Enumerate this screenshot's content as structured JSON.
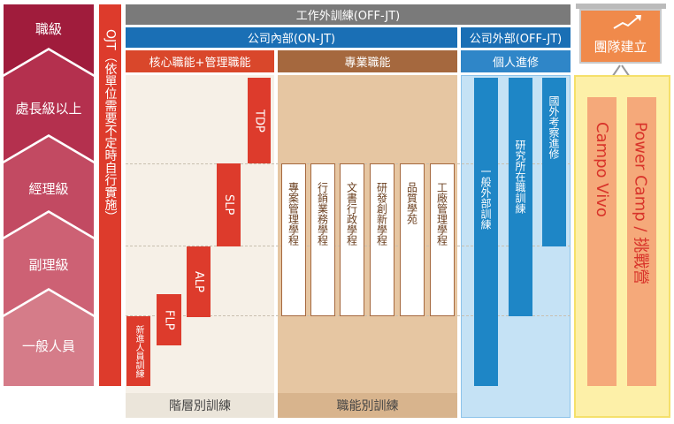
{
  "levels": {
    "title": "職級",
    "items": [
      "處長級以上",
      "經理級",
      "副理級",
      "一般人員"
    ]
  },
  "ojt": "OJT（依單位需要不定時自行實施）",
  "off_jt": "工作外訓練(OFF-JT)",
  "internal": {
    "title": "公司內部(ON-JT)",
    "core": {
      "title": "核心職能+管理職能",
      "programs": [
        "新進人員訓練",
        "FLP",
        "ALP",
        "SLP",
        "TDP"
      ],
      "footer": "階層別訓練"
    },
    "professional": {
      "title": "專業職能",
      "programs": [
        "專案管理學程",
        "行銷業務學程",
        "文書行政學程",
        "研發創新學程",
        "品質學苑",
        "工廠管理學程"
      ],
      "footer": "職能別訓練"
    }
  },
  "external": {
    "title": "公司外部(OFF-JT)",
    "personal": {
      "title": "個人進修",
      "programs": [
        "一般外部訓練",
        "研究所在職訓練",
        "國外考察進修"
      ]
    }
  },
  "team_building": {
    "title": "團隊建立",
    "programs": [
      "Campo Vivo",
      "Power Camp / 挑戰營"
    ]
  }
}
